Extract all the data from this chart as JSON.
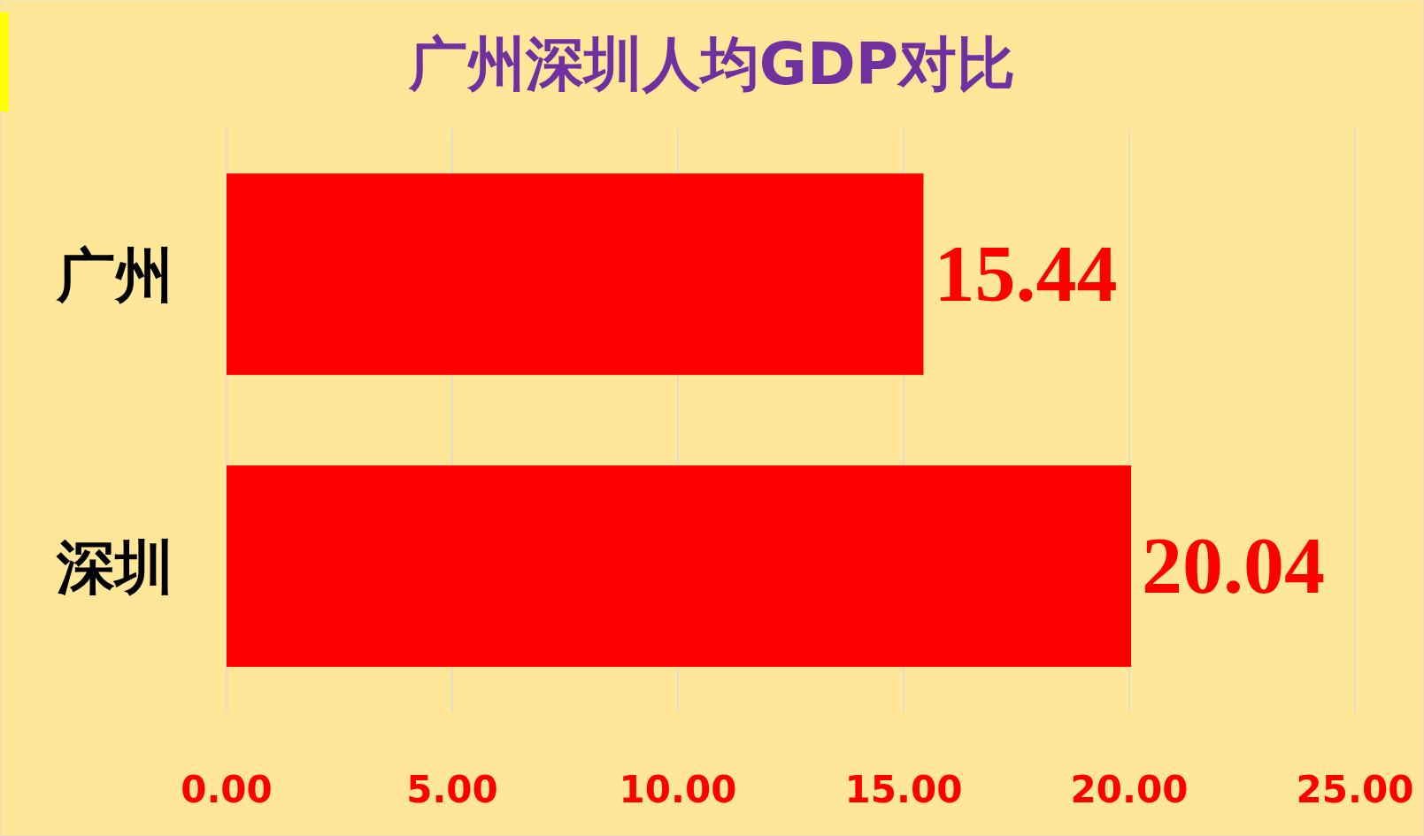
{
  "chart_data": {
    "type": "bar",
    "orientation": "horizontal",
    "title": "广州深圳人均GDP对比",
    "categories": [
      "广州",
      "深圳"
    ],
    "values": [
      15.44,
      20.04
    ],
    "color": "#ff0000",
    "xlim": [
      0,
      25
    ],
    "xticks": [
      {
        "value": 0,
        "label": "0.00"
      },
      {
        "value": 5,
        "label": "5.00"
      },
      {
        "value": 10,
        "label": "10.00"
      },
      {
        "value": 15,
        "label": "15.00"
      },
      {
        "value": 20,
        "label": "20.00"
      },
      {
        "value": 25,
        "label": "25.00"
      }
    ],
    "grid": "x",
    "data_labels": true
  }
}
